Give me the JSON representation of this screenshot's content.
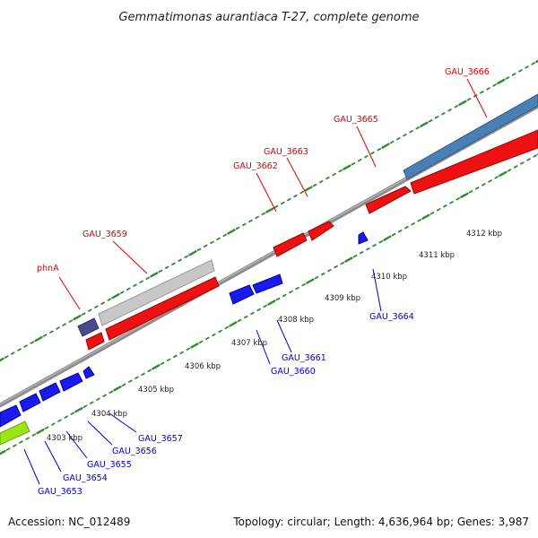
{
  "title": "Gemmatimonas aurantiaca T-27, complete genome",
  "footer": {
    "accession": "Accession: NC_012489",
    "topology": "Topology: circular; Length: 4,636,964 bp; Genes: 3,987"
  },
  "colors": {
    "backbone": "#8c8c8c",
    "tick_dots": "#2e8b2e",
    "label_forward": "#dd0000",
    "label_reverse": "#0000cc",
    "cds_red": "#ee1111",
    "cds_blue": "#1a1aee",
    "cds_gray": "#c8c8c8",
    "cds_steelblue": "#4a7fb5",
    "cds_slate": "#4b4a8c",
    "cds_green": "#9ae619"
  },
  "ticks": [
    {
      "label": "4303 kbp"
    },
    {
      "label": "4304 kbp"
    },
    {
      "label": "4305 kbp"
    },
    {
      "label": "4306 kbp"
    },
    {
      "label": "4307 kbp"
    },
    {
      "label": "4308 kbp"
    },
    {
      "label": "4309 kbp"
    },
    {
      "label": "4310 kbp"
    },
    {
      "label": "4311 kbp"
    },
    {
      "label": "4312 kbp"
    }
  ],
  "labels_forward": [
    "phnA",
    "GAU_3659",
    "GAU_3662",
    "GAU_3663",
    "GAU_3665",
    "GAU_3666"
  ],
  "labels_reverse": [
    "GAU_3653",
    "GAU_3654",
    "GAU_3655",
    "GAU_3656",
    "GAU_3657",
    "GAU_3660",
    "GAU_3661",
    "GAU_3664"
  ]
}
